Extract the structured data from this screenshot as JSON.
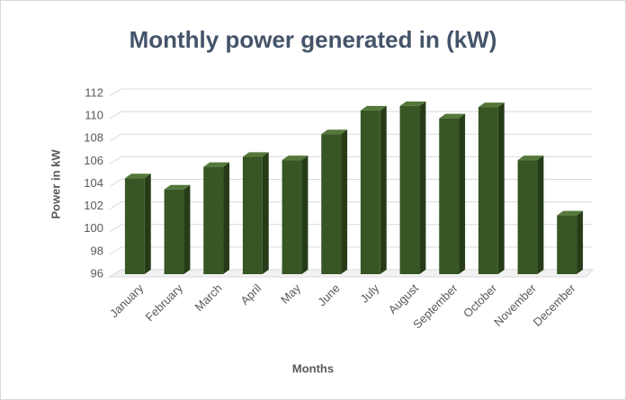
{
  "chart_data": {
    "type": "bar",
    "title": "Monthly power generated in (kW)",
    "x_label": "Months",
    "y_label": "Power in kW",
    "categories": [
      "January",
      "February",
      "March",
      "April",
      "May",
      "June",
      "July",
      "August",
      "September",
      "October",
      "November",
      "December"
    ],
    "values": [
      104.5,
      103.5,
      105.5,
      106.4,
      106.1,
      108.4,
      110.5,
      110.9,
      109.8,
      110.8,
      106.1,
      101.2
    ],
    "color": "#375623",
    "ylim": [
      96,
      112
    ],
    "yticks": [
      96,
      98,
      100,
      102,
      104,
      106,
      108,
      110,
      112
    ],
    "grid": true
  }
}
